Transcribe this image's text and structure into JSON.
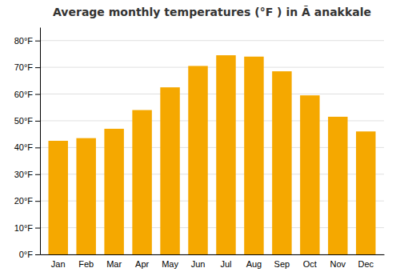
{
  "chart_data": {
    "type": "bar",
    "title": "Average monthly temperatures (°F ) in Ã anakkale",
    "categories": [
      "Jan",
      "Feb",
      "Mar",
      "Apr",
      "May",
      "Jun",
      "Jul",
      "Aug",
      "Sep",
      "Oct",
      "Nov",
      "Dec"
    ],
    "values": [
      42.5,
      43.5,
      47.0,
      54.0,
      62.5,
      70.5,
      74.5,
      74.0,
      68.5,
      59.5,
      51.5,
      46.0
    ],
    "color": "#F5A800",
    "ylim": [
      0,
      85
    ],
    "yticks": [
      {
        "value": 0,
        "label": "0°F"
      },
      {
        "value": 10,
        "label": "10°F"
      },
      {
        "value": 20,
        "label": "20°F"
      },
      {
        "value": 30,
        "label": "30°F"
      },
      {
        "value": 40,
        "label": "40°F"
      },
      {
        "value": 50,
        "label": "50°F"
      },
      {
        "value": 60,
        "label": "60°F"
      },
      {
        "value": 70,
        "label": "70°F"
      },
      {
        "value": 80,
        "label": "80°F"
      }
    ],
    "grid": true
  }
}
